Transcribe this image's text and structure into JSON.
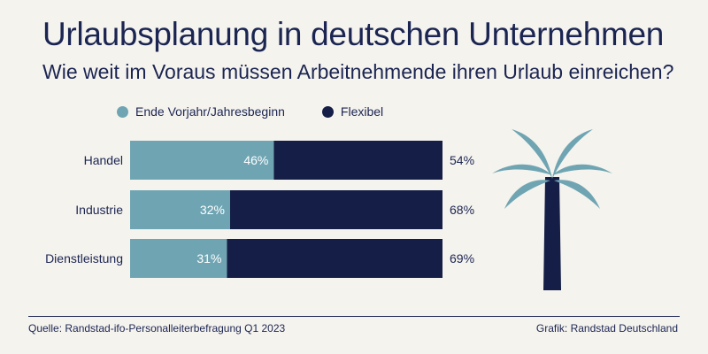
{
  "header": {
    "title": "Urlaubsplanung in deutschen Unternehmen",
    "subtitle": "Wie weit im Voraus müssen Arbeitnehmende ihren Urlaub einreichen?"
  },
  "colors": {
    "series1": "#6fa5b3",
    "series2": "#141e46",
    "text": "#1b2552",
    "background": "#f5f3ee"
  },
  "chart_data": {
    "type": "bar",
    "orientation": "horizontal",
    "stacked": true,
    "categories": [
      "Handel",
      "Industrie",
      "Dienstleistung"
    ],
    "series": [
      {
        "name": "Ende Vorjahr/Jahresbeginn",
        "values": [
          46,
          32,
          31
        ],
        "labels": [
          "46%",
          "32%",
          "31%"
        ]
      },
      {
        "name": "Flexibel",
        "values": [
          54,
          68,
          69
        ],
        "labels": [
          "54%",
          "68%",
          "69%"
        ]
      }
    ],
    "xlim": [
      0,
      100
    ],
    "grid": false,
    "legend_position": "top-left"
  },
  "decoration": {
    "icon": "palm-tree-icon"
  },
  "footer": {
    "source": "Quelle: Randstad-ifo-Personalleiterbefragung Q1 2023",
    "credit": "Grafik: Randstad Deutschland"
  }
}
